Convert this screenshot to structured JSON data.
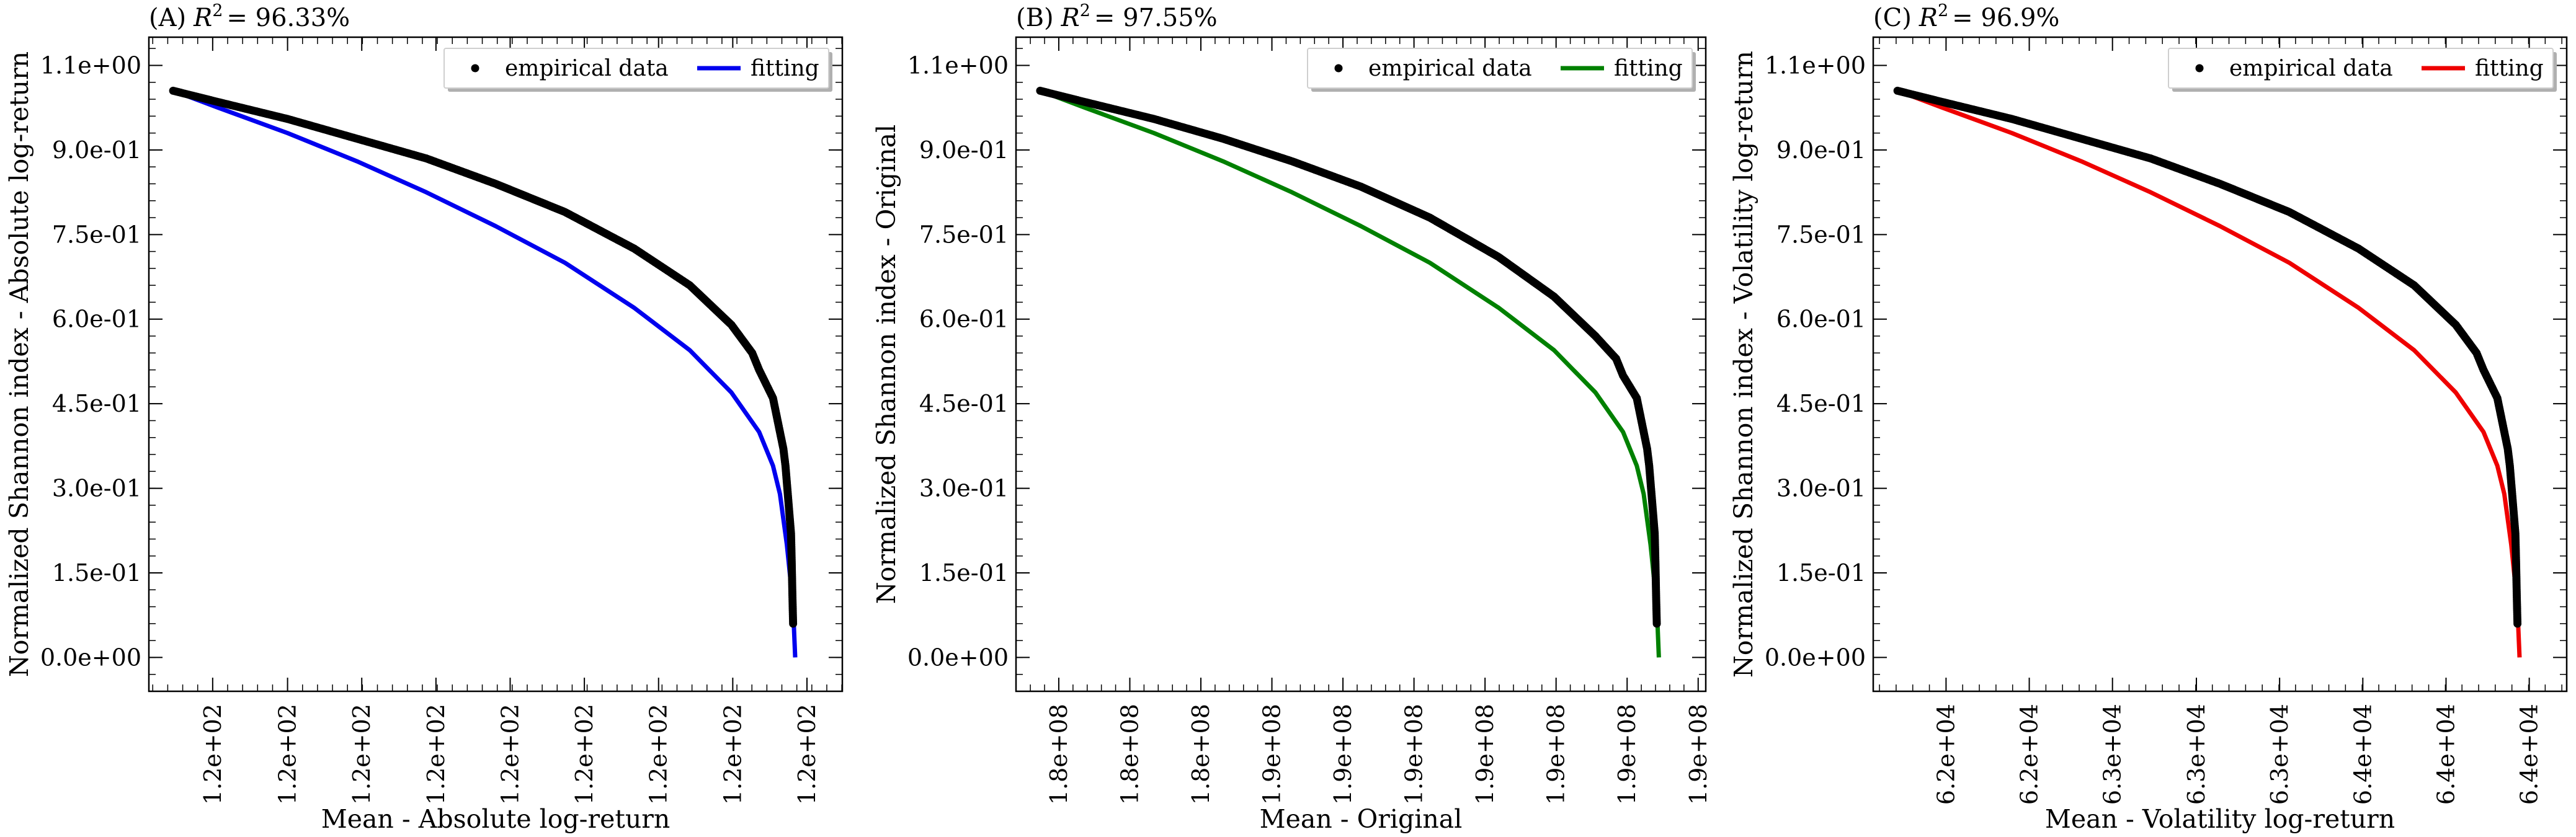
{
  "chart_data": [
    {
      "type": "scatter",
      "panel": "A",
      "title": "(A) R² = 96.33%",
      "title_prefix": "(A)",
      "r2_text": "= 96.33%",
      "xlabel": "Mean - Absolute log-return",
      "ylabel": "Normalized Shannon index - Absolute log-return",
      "xlim": [
        0,
        1
      ],
      "ylim": [
        -0.06,
        1.1
      ],
      "x_ticks": [
        0.092,
        0.2,
        0.307,
        0.414,
        0.521,
        0.628,
        0.735,
        0.842,
        0.949
      ],
      "x_tick_labels": [
        "1.2e+02",
        "1.2e+02",
        "1.2e+02",
        "1.2e+02",
        "1.2e+02",
        "1.2e+02",
        "1.2e+02",
        "1.2e+02",
        "1.2e+02"
      ],
      "y_ticks": [
        0.0,
        0.15,
        0.3,
        0.45,
        0.6,
        0.75,
        0.9,
        1.05
      ],
      "y_tick_labels": [
        "0.0e+00",
        "1.5e-01",
        "3.0e-01",
        "4.5e-01",
        "6.0e-01",
        "7.5e-01",
        "9.0e-01",
        "1.1e+00"
      ],
      "legend": {
        "position": "top-right",
        "entries": [
          "empirical data",
          "fitting"
        ]
      },
      "fit_color": "#0000ee",
      "series": [
        {
          "name": "empirical data",
          "x": [
            0.035,
            0.1,
            0.2,
            0.3,
            0.4,
            0.5,
            0.6,
            0.7,
            0.78,
            0.84,
            0.87,
            0.88,
            0.9,
            0.905,
            0.91,
            0.915,
            0.918,
            0.92,
            0.922,
            0.924,
            0.926,
            0.927,
            0.928,
            0.929
          ],
          "y": [
            1.005,
            0.985,
            0.955,
            0.92,
            0.885,
            0.84,
            0.79,
            0.725,
            0.66,
            0.59,
            0.54,
            0.51,
            0.46,
            0.43,
            0.4,
            0.37,
            0.34,
            0.31,
            0.28,
            0.25,
            0.22,
            0.17,
            0.11,
            0.06
          ]
        },
        {
          "name": "fitting",
          "x": [
            0.035,
            0.1,
            0.2,
            0.3,
            0.4,
            0.5,
            0.6,
            0.7,
            0.78,
            0.84,
            0.88,
            0.9,
            0.91,
            0.92,
            0.925,
            0.93,
            0.932
          ],
          "y": [
            1.005,
            0.975,
            0.93,
            0.88,
            0.825,
            0.765,
            0.7,
            0.62,
            0.545,
            0.47,
            0.4,
            0.34,
            0.29,
            0.2,
            0.14,
            0.06,
            0.0
          ]
        }
      ]
    },
    {
      "type": "scatter",
      "panel": "B",
      "title": "(B) R² = 97.55%",
      "title_prefix": "(B)",
      "r2_text": "= 97.55%",
      "xlabel": "Mean - Original",
      "ylabel": "Normalized Shannon index - Original",
      "xlim": [
        0,
        1
      ],
      "ylim": [
        -0.06,
        1.1
      ],
      "x_ticks": [
        0.062,
        0.165,
        0.268,
        0.371,
        0.474,
        0.577,
        0.68,
        0.783,
        0.886,
        0.989
      ],
      "x_tick_labels": [
        "1.8e+08",
        "1.8e+08",
        "1.8e+08",
        "1.9e+08",
        "1.9e+08",
        "1.9e+08",
        "1.9e+08",
        "1.9e+08",
        "1.9e+08",
        "1.9e+08"
      ],
      "y_ticks": [
        0.0,
        0.15,
        0.3,
        0.45,
        0.6,
        0.75,
        0.9,
        1.05
      ],
      "y_tick_labels": [
        "0.0e+00",
        "1.5e-01",
        "3.0e-01",
        "4.5e-01",
        "6.0e-01",
        "7.5e-01",
        "9.0e-01",
        "1.1e+00"
      ],
      "legend": {
        "position": "top-right",
        "entries": [
          "empirical data",
          "fitting"
        ]
      },
      "fit_color": "#008000",
      "series": [
        {
          "name": "empirical data",
          "x": [
            0.035,
            0.1,
            0.2,
            0.3,
            0.4,
            0.5,
            0.6,
            0.7,
            0.78,
            0.84,
            0.87,
            0.88,
            0.9,
            0.905,
            0.91,
            0.915,
            0.918,
            0.92,
            0.922,
            0.924,
            0.926,
            0.927,
            0.928,
            0.929
          ],
          "y": [
            1.005,
            0.985,
            0.955,
            0.92,
            0.88,
            0.835,
            0.78,
            0.71,
            0.64,
            0.57,
            0.53,
            0.5,
            0.46,
            0.43,
            0.4,
            0.37,
            0.34,
            0.31,
            0.28,
            0.25,
            0.22,
            0.17,
            0.11,
            0.06
          ]
        },
        {
          "name": "fitting",
          "x": [
            0.035,
            0.1,
            0.2,
            0.3,
            0.4,
            0.5,
            0.6,
            0.7,
            0.78,
            0.84,
            0.88,
            0.9,
            0.91,
            0.92,
            0.925,
            0.93,
            0.932
          ],
          "y": [
            1.005,
            0.975,
            0.93,
            0.88,
            0.825,
            0.765,
            0.7,
            0.62,
            0.545,
            0.47,
            0.4,
            0.34,
            0.29,
            0.2,
            0.14,
            0.06,
            0.0
          ]
        }
      ]
    },
    {
      "type": "scatter",
      "panel": "C",
      "title": "(C) R² = 96.9%",
      "title_prefix": "(C)",
      "r2_text": "= 96.9%",
      "xlabel": "Mean - Volatility log-return",
      "ylabel": "Normalized Shannon index - Volatility log-return",
      "xlim": [
        0,
        1
      ],
      "ylim": [
        -0.06,
        1.1
      ],
      "x_ticks": [
        0.105,
        0.225,
        0.345,
        0.466,
        0.586,
        0.706,
        0.826,
        0.946
      ],
      "x_tick_labels": [
        "6.2e+04",
        "6.2e+04",
        "6.3e+04",
        "6.3e+04",
        "6.3e+04",
        "6.4e+04",
        "6.4e+04",
        "6.4e+04"
      ],
      "y_ticks": [
        0.0,
        0.15,
        0.3,
        0.45,
        0.6,
        0.75,
        0.9,
        1.05
      ],
      "y_tick_labels": [
        "0.0e+00",
        "1.5e-01",
        "3.0e-01",
        "4.5e-01",
        "6.0e-01",
        "7.5e-01",
        "9.0e-01",
        "1.1e+00"
      ],
      "legend": {
        "position": "top-right",
        "entries": [
          "empirical data",
          "fitting"
        ]
      },
      "fit_color": "#ee0000",
      "series": [
        {
          "name": "empirical data",
          "x": [
            0.035,
            0.1,
            0.2,
            0.3,
            0.4,
            0.5,
            0.6,
            0.7,
            0.78,
            0.84,
            0.87,
            0.88,
            0.9,
            0.905,
            0.91,
            0.915,
            0.918,
            0.92,
            0.922,
            0.924,
            0.926,
            0.927,
            0.928,
            0.929
          ],
          "y": [
            1.005,
            0.985,
            0.955,
            0.92,
            0.885,
            0.84,
            0.79,
            0.725,
            0.66,
            0.59,
            0.54,
            0.51,
            0.46,
            0.43,
            0.4,
            0.37,
            0.34,
            0.31,
            0.28,
            0.25,
            0.22,
            0.17,
            0.11,
            0.06
          ]
        },
        {
          "name": "fitting",
          "x": [
            0.035,
            0.1,
            0.2,
            0.3,
            0.4,
            0.5,
            0.6,
            0.7,
            0.78,
            0.84,
            0.88,
            0.9,
            0.91,
            0.92,
            0.925,
            0.93,
            0.932
          ],
          "y": [
            1.005,
            0.975,
            0.93,
            0.88,
            0.825,
            0.765,
            0.7,
            0.62,
            0.545,
            0.47,
            0.4,
            0.34,
            0.29,
            0.2,
            0.14,
            0.06,
            0.0
          ]
        }
      ]
    }
  ]
}
